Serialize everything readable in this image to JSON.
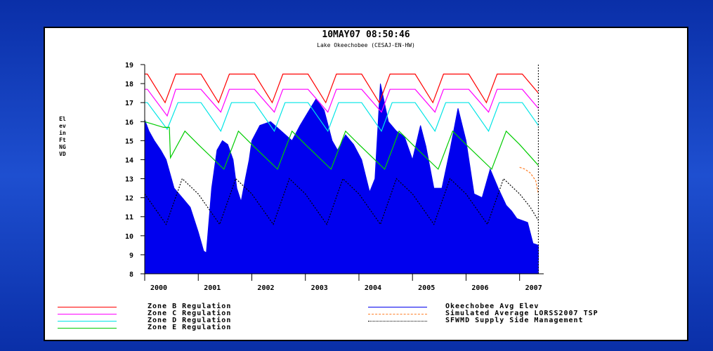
{
  "chart_data": {
    "type": "area",
    "title": "10MAY07   08:50:46",
    "subtitle": "Lake Okeechobee    (CESAJ-EN-HW)",
    "ylabel": "Elev in Ft NGVD",
    "ylim": [
      8,
      19
    ],
    "xlim": [
      2000,
      2007.45
    ],
    "yticks": [
      "8",
      "9",
      "10",
      "11",
      "12",
      "13",
      "14",
      "15",
      "16",
      "17",
      "18",
      "19"
    ],
    "xticks": [
      {
        "label": "2000",
        "x": 2000
      },
      {
        "label": "2001",
        "x": 2001
      },
      {
        "label": "2002",
        "x": 2002
      },
      {
        "label": "2003",
        "x": 2003
      },
      {
        "label": "2004",
        "x": 2004
      },
      {
        "label": "2005",
        "x": 2005
      },
      {
        "label": "2006",
        "x": 2006
      },
      {
        "label": "2007",
        "x": 2007
      }
    ],
    "current_date_line_x": 2007.35,
    "series": [
      {
        "name": "Zone B Regulation",
        "color": "#ff0000",
        "style": "solid",
        "x": [
          2000.0,
          2000.05,
          2000.38,
          2000.58,
          2001.05,
          2001.38,
          2001.58,
          2002.05,
          2002.38,
          2002.58,
          2003.05,
          2003.38,
          2003.58,
          2004.05,
          2004.38,
          2004.58,
          2005.05,
          2005.38,
          2005.58,
          2006.05,
          2006.38,
          2006.58,
          2007.05,
          2007.35
        ],
        "y": [
          18.5,
          18.5,
          17.0,
          18.5,
          18.5,
          17.0,
          18.5,
          18.5,
          17.0,
          18.5,
          18.5,
          17.0,
          18.5,
          18.5,
          17.0,
          18.5,
          18.5,
          17.0,
          18.5,
          18.5,
          17.0,
          18.5,
          18.5,
          17.5
        ]
      },
      {
        "name": "Zone C Regulation",
        "color": "#ff00ff",
        "style": "solid",
        "x": [
          2000.0,
          2000.05,
          2000.42,
          2000.58,
          2001.05,
          2001.42,
          2001.58,
          2002.05,
          2002.42,
          2002.58,
          2003.05,
          2003.42,
          2003.58,
          2004.05,
          2004.42,
          2004.58,
          2005.05,
          2005.42,
          2005.58,
          2006.05,
          2006.42,
          2006.58,
          2007.05,
          2007.35
        ],
        "y": [
          17.7,
          17.7,
          16.3,
          17.7,
          17.7,
          16.5,
          17.7,
          17.7,
          16.5,
          17.7,
          17.7,
          16.5,
          17.7,
          17.7,
          16.5,
          17.7,
          17.7,
          16.5,
          17.7,
          17.7,
          16.5,
          17.7,
          17.7,
          16.7
        ]
      },
      {
        "name": "Zone D Regulation",
        "color": "#00e5e5",
        "style": "solid",
        "x": [
          2000.0,
          2000.05,
          2000.42,
          2000.62,
          2001.05,
          2001.42,
          2001.62,
          2002.05,
          2002.42,
          2002.62,
          2003.05,
          2003.42,
          2003.62,
          2004.05,
          2004.42,
          2004.62,
          2005.05,
          2005.42,
          2005.62,
          2006.05,
          2006.42,
          2006.62,
          2007.05,
          2007.35
        ],
        "y": [
          17.0,
          17.0,
          15.6,
          17.0,
          17.0,
          15.5,
          17.0,
          17.0,
          15.5,
          17.0,
          17.0,
          15.5,
          17.0,
          17.0,
          15.5,
          17.0,
          17.0,
          15.5,
          17.0,
          17.0,
          15.5,
          17.0,
          17.0,
          15.8
        ]
      },
      {
        "name": "Zone E Regulation",
        "color": "#00cc00",
        "style": "solid",
        "x": [
          2000.0,
          2000.35,
          2000.46,
          2000.48,
          2000.75,
          2001.0,
          2001.48,
          2001.75,
          2002.0,
          2002.48,
          2002.75,
          2003.0,
          2003.48,
          2003.75,
          2004.0,
          2004.48,
          2004.75,
          2005.0,
          2005.48,
          2005.75,
          2006.0,
          2006.48,
          2006.75,
          2007.0,
          2007.35
        ],
        "y": [
          16.0,
          15.7,
          15.7,
          14.1,
          15.5,
          14.8,
          13.5,
          15.5,
          14.8,
          13.5,
          15.5,
          14.8,
          13.5,
          15.5,
          14.8,
          13.5,
          15.5,
          14.8,
          13.5,
          15.5,
          14.8,
          13.5,
          15.5,
          14.8,
          13.7
        ]
      },
      {
        "name": "Okeechobee Avg Elev",
        "color": "#0000ee",
        "style": "area",
        "x": [
          2000.0,
          2000.08,
          2000.18,
          2000.3,
          2000.4,
          2000.55,
          2000.7,
          2000.85,
          2001.0,
          2001.1,
          2001.15,
          2001.25,
          2001.35,
          2001.45,
          2001.55,
          2001.65,
          2001.72,
          2001.8,
          2001.88,
          2001.95,
          2002.0,
          2002.15,
          2002.35,
          2002.55,
          2002.75,
          2002.9,
          2003.05,
          2003.2,
          2003.35,
          2003.5,
          2003.6,
          2003.75,
          2003.9,
          2004.05,
          2004.2,
          2004.3,
          2004.4,
          2004.55,
          2004.7,
          2004.85,
          2005.0,
          2005.15,
          2005.25,
          2005.4,
          2005.55,
          2005.7,
          2005.85,
          2006.0,
          2006.15,
          2006.3,
          2006.45,
          2006.6,
          2006.75,
          2006.85,
          2006.95,
          2007.05,
          2007.15,
          2007.25,
          2007.35
        ],
        "y": [
          16.1,
          15.5,
          15.0,
          14.5,
          14.0,
          12.5,
          12.0,
          11.5,
          10.2,
          9.2,
          9.1,
          12.5,
          14.5,
          15.0,
          14.8,
          14.0,
          12.5,
          11.8,
          13.0,
          14.0,
          15.0,
          15.8,
          16.0,
          15.5,
          15.0,
          15.8,
          16.5,
          17.2,
          16.6,
          15.0,
          14.5,
          15.3,
          14.8,
          14.0,
          12.3,
          13.0,
          18.0,
          16.0,
          15.5,
          15.2,
          14.0,
          15.8,
          14.7,
          12.5,
          12.5,
          14.5,
          16.7,
          15.0,
          12.2,
          12.0,
          13.5,
          12.5,
          11.6,
          11.3,
          10.9,
          10.8,
          10.7,
          9.6,
          9.5
        ]
      },
      {
        "name": "Simulated Average LORSS2007 TSP",
        "color": "#ff7f27",
        "style": "dashed",
        "x": [
          2007.0,
          2007.1,
          2007.2,
          2007.3,
          2007.35
        ],
        "y": [
          13.6,
          13.5,
          13.3,
          12.9,
          12.2
        ]
      },
      {
        "name": "SFWMD Supply Side Management",
        "color": "#000000",
        "style": "dotted",
        "x": [
          2000.0,
          2000.4,
          2000.7,
          2001.0,
          2001.4,
          2001.7,
          2002.0,
          2002.4,
          2002.7,
          2003.0,
          2003.4,
          2003.7,
          2004.0,
          2004.4,
          2004.7,
          2005.0,
          2005.4,
          2005.7,
          2006.0,
          2006.4,
          2006.7,
          2007.0,
          2007.2,
          2007.35
        ],
        "y": [
          12.2,
          10.6,
          13.0,
          12.2,
          10.6,
          13.0,
          12.2,
          10.6,
          13.0,
          12.2,
          10.6,
          13.0,
          12.2,
          10.6,
          13.0,
          12.2,
          10.6,
          13.0,
          12.2,
          10.6,
          13.0,
          12.2,
          11.5,
          10.8
        ]
      }
    ]
  }
}
